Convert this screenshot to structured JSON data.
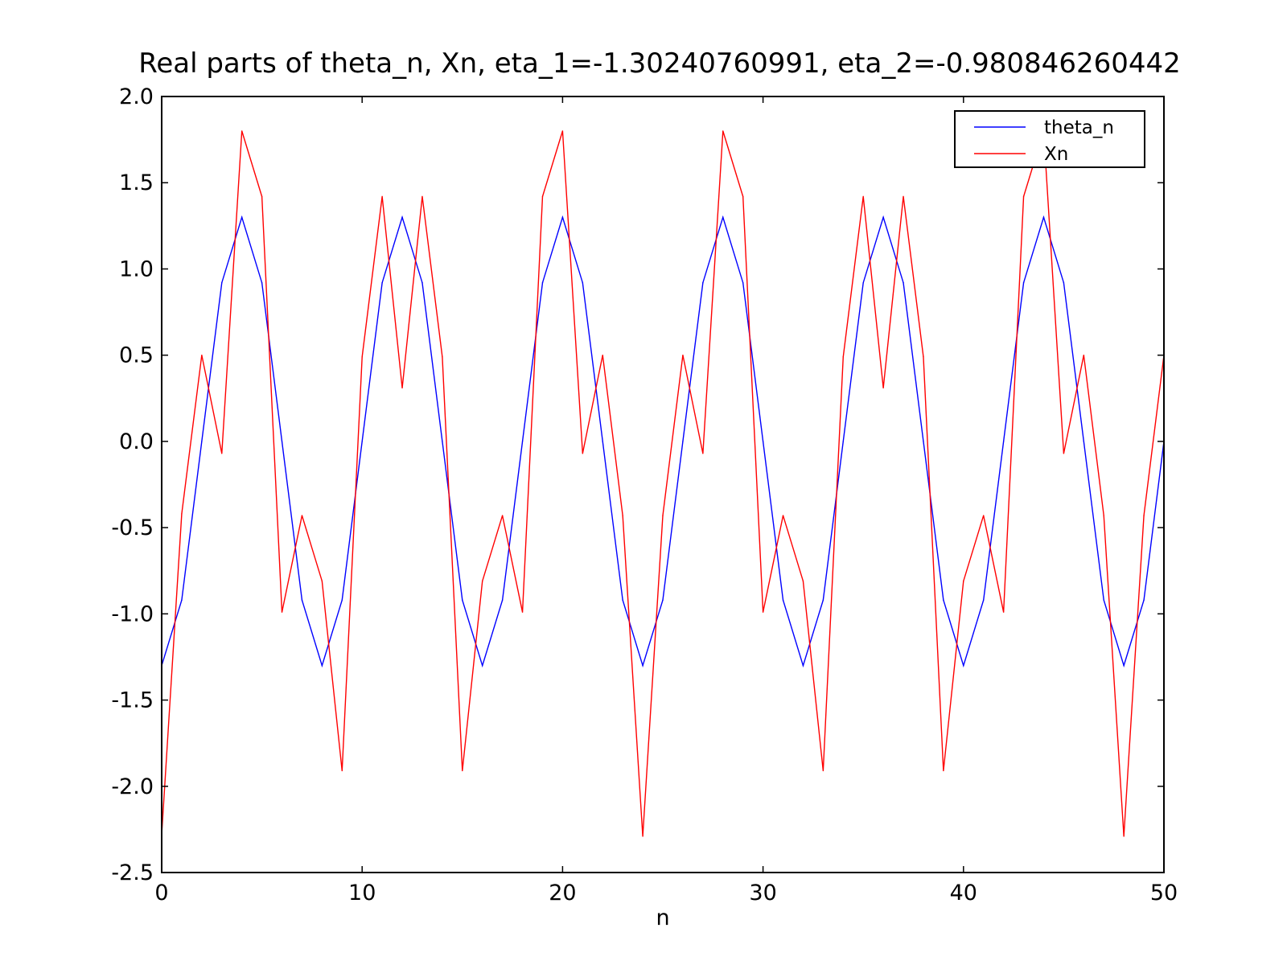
{
  "chart_data": {
    "type": "line",
    "title": "Real parts of theta_n, Xn, eta_1=-1.30240760991, eta_2=-0.980846260442",
    "xlabel": "n",
    "ylabel": "",
    "xlim": [
      0,
      50
    ],
    "ylim": [
      -2.5,
      2.0
    ],
    "xticks": [
      0,
      10,
      20,
      30,
      40,
      50
    ],
    "xtick_labels": [
      "0",
      "10",
      "20",
      "30",
      "40",
      "50"
    ],
    "yticks": [
      -2.5,
      -2.0,
      -1.5,
      -1.0,
      -0.5,
      0.0,
      0.5,
      1.0,
      1.5,
      2.0
    ],
    "ytick_labels": [
      "-2.5",
      "-2.0",
      "-1.5",
      "-1.0",
      "-0.5",
      "0.0",
      "0.5",
      "1.0",
      "1.5",
      "2.0"
    ],
    "grid": false,
    "legend_position": "top-right",
    "x": [
      0,
      1,
      2,
      3,
      4,
      5,
      6,
      7,
      8,
      9,
      10,
      11,
      12,
      13,
      14,
      15,
      16,
      17,
      18,
      19,
      20,
      21,
      22,
      23,
      24,
      25,
      26,
      27,
      28,
      29,
      30,
      31,
      32,
      33,
      34,
      35,
      36,
      37,
      38,
      39,
      40,
      41,
      42,
      43,
      44,
      45,
      46,
      47,
      48,
      49,
      50
    ],
    "series": [
      {
        "name": "theta_n",
        "color": "#0000ff",
        "values": [
          -1.3,
          -0.92,
          0.0,
          0.92,
          1.3,
          0.92,
          0.0,
          -0.92,
          -1.3,
          -0.92,
          0.0,
          0.92,
          1.3,
          0.92,
          0.0,
          -0.92,
          -1.3,
          -0.92,
          0.0,
          0.92,
          1.3,
          0.92,
          0.0,
          -0.92,
          -1.3,
          -0.92,
          0.0,
          0.92,
          1.3,
          0.92,
          0.0,
          -0.92,
          -1.3,
          -0.92,
          0.0,
          0.92,
          1.3,
          0.92,
          0.0,
          -0.92,
          -1.3,
          -0.92,
          0.0,
          0.92,
          1.3,
          0.92,
          0.0,
          -0.92,
          -1.3,
          -0.92,
          0.0
        ]
      },
      {
        "name": "Xn",
        "color": "#ff0000",
        "values": [
          -2.28,
          -0.42,
          0.5,
          -0.07,
          1.8,
          1.42,
          -0.99,
          -0.43,
          -0.81,
          -1.91,
          0.49,
          1.42,
          0.31,
          1.42,
          0.49,
          -1.91,
          -0.81,
          -0.43,
          -0.99,
          1.42,
          1.8,
          -0.07,
          0.5,
          -0.43,
          -2.29,
          -0.43,
          0.5,
          -0.07,
          1.8,
          1.42,
          -0.99,
          -0.43,
          -0.81,
          -1.91,
          0.49,
          1.42,
          0.31,
          1.42,
          0.49,
          -1.91,
          -0.81,
          -0.43,
          -0.99,
          1.42,
          1.8,
          -0.07,
          0.5,
          -0.43,
          -2.29,
          -0.43,
          0.5
        ]
      }
    ]
  }
}
